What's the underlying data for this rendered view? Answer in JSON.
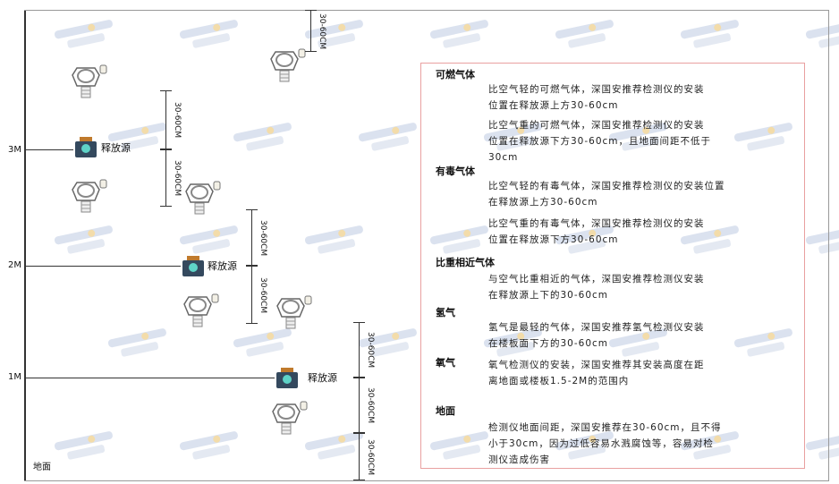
{
  "watermark": {
    "brand": "SINGOAN",
    "name": "深国安"
  },
  "levels": {
    "m3": "3M",
    "m2": "2M",
    "m1": "1M",
    "ground": "地面"
  },
  "source_label": "释放源",
  "dimension_label": "30-60CM",
  "colors": {
    "box_border": "#e9a0a0",
    "source_body": "#34495e",
    "source_cap": "#c07a2c",
    "source_face": "#5fd3c7"
  },
  "notes": [
    {
      "heading": "可燃气体",
      "paragraphs": [
        [
          "比空气轻的可燃气体，深国安推荐检测仪的安装",
          "位置在释放源上方30-60cm"
        ],
        [
          "比空气重的可燃气体，深国安推荐检测仪的安装",
          "位置在释放源下方30-60cm，且地面间距不低于",
          "30cm"
        ]
      ]
    },
    {
      "heading": "有毒气体",
      "paragraphs": [
        [
          "比空气轻的有毒气体，深国安推荐检测仪的安装位置",
          "在释放源上方30-60cm"
        ],
        [
          "比空气重的有毒气体，深国安推荐检测仪的安装",
          "位置在释放源下方30-60cm"
        ]
      ]
    },
    {
      "heading": "比重相近气体",
      "paragraphs": [
        [
          "与空气比重相近的气体，深国安推荐检测仪安装",
          "在释放源上下的30-60cm"
        ]
      ]
    },
    {
      "heading": "氢气",
      "paragraphs": [
        [
          "氢气是最轻的气体，深国安推荐氢气检测仪安装",
          "在楼板面下方的30-60cm"
        ]
      ]
    },
    {
      "heading": "氧气",
      "paragraphs": [
        [
          "氧气检测仪的安装，深国安推荐其安装高度在距",
          "离地面或楼板1.5-2M的范围内"
        ]
      ]
    },
    {
      "heading": "地面",
      "paragraphs": [
        [
          "检测仪地面间距，深国安推荐在30-60cm，且不得",
          "小于30cm，因为过低容易水溅腐蚀等，容易对检",
          "测仪造成伤害"
        ]
      ]
    }
  ]
}
